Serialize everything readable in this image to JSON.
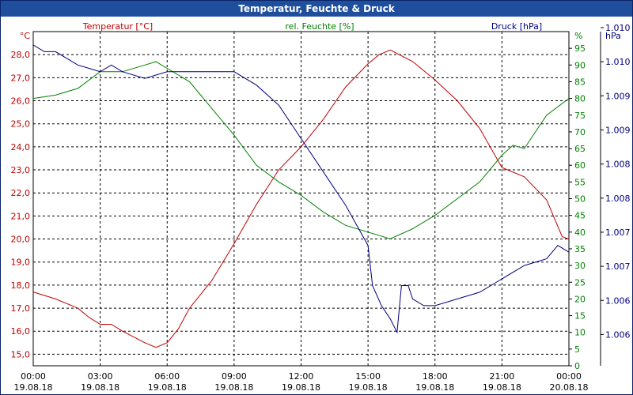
{
  "window": {
    "title": "Temperatur, Feuchte & Druck"
  },
  "chart_data": {
    "type": "line",
    "title": "Temperatur, Feuchte & Druck",
    "x_ticks": [
      {
        "time": "00:00",
        "date": "19.08.18"
      },
      {
        "time": "03:00",
        "date": "19.08.18"
      },
      {
        "time": "06:00",
        "date": "19.08.18"
      },
      {
        "time": "09:00",
        "date": "19.08.18"
      },
      {
        "time": "12:00",
        "date": "19.08.18"
      },
      {
        "time": "15:00",
        "date": "19.08.18"
      },
      {
        "time": "18:00",
        "date": "19.08.18"
      },
      {
        "time": "21:00",
        "date": "19.08.18"
      },
      {
        "time": "00:00",
        "date": "20.08.18"
      }
    ],
    "xlim_hours": [
      0,
      24
    ],
    "grid": true,
    "axes": {
      "temperature": {
        "label": "Temperatur [°C]",
        "unit": "°C",
        "color": "#c00000",
        "range": [
          14.5,
          29.0
        ],
        "ticks": [
          "15,0",
          "16,0",
          "17,0",
          "18,0",
          "19,0",
          "20,0",
          "21,0",
          "22,0",
          "23,0",
          "24,0",
          "25,0",
          "26,0",
          "27,0",
          "28,0"
        ]
      },
      "humidity": {
        "label": "rel. Feuchte [%]",
        "unit": "%",
        "color": "#008000",
        "range": [
          0,
          100
        ],
        "ticks": [
          "0",
          "5",
          "10",
          "15",
          "20",
          "25",
          "30",
          "35",
          "40",
          "45",
          "50",
          "55",
          "60",
          "65",
          "70",
          "75",
          "80",
          "85",
          "90",
          "95"
        ]
      },
      "pressure": {
        "label": "Druck [hPa]",
        "unit": "hPa",
        "color": "#000080",
        "range": [
          1005.4,
          1010.4
        ],
        "ticks": [
          "1.006",
          "1.006",
          "1.007",
          "1.007",
          "1.008",
          "1.008",
          "1.009",
          "1.009",
          "1.010",
          "1.010"
        ]
      }
    },
    "series": [
      {
        "name": "Temperatur [°C]",
        "axis": "temperature",
        "color": "#c00000",
        "x": [
          0,
          1,
          2,
          2.5,
          3,
          3.5,
          4,
          5,
          5.5,
          6,
          6.5,
          7,
          8,
          9,
          10,
          11,
          12,
          13,
          14,
          15,
          15.5,
          16,
          17,
          18,
          19,
          20,
          21,
          22,
          23,
          23.7,
          24
        ],
        "values": [
          17.7,
          17.4,
          17.0,
          16.6,
          16.3,
          16.3,
          16.0,
          15.5,
          15.3,
          15.5,
          16.1,
          17.0,
          18.2,
          19.8,
          21.5,
          23.0,
          24.0,
          25.2,
          26.6,
          27.6,
          28.0,
          28.2,
          27.7,
          26.9,
          26.0,
          24.8,
          23.1,
          22.7,
          21.7,
          20.1,
          20.0
        ]
      },
      {
        "name": "rel. Feuchte [%]",
        "axis": "humidity",
        "color": "#008000",
        "x": [
          0,
          1,
          2,
          3,
          4,
          5,
          5.5,
          6,
          7,
          8,
          9,
          10,
          11,
          12,
          13,
          14,
          15,
          16,
          17,
          18,
          19,
          20,
          21,
          21.5,
          22,
          23,
          24
        ],
        "values": [
          80,
          81,
          83,
          88,
          88,
          90,
          91,
          89,
          85,
          77,
          69,
          60,
          55,
          51,
          46,
          42,
          40,
          38,
          41,
          45,
          50,
          55,
          63,
          66,
          65,
          75,
          80
        ]
      },
      {
        "name": "Druck [hPa]",
        "axis": "pressure",
        "color": "#000080",
        "x": [
          0,
          0.5,
          1,
          1.5,
          2,
          2.5,
          3,
          3.5,
          4,
          5,
          6,
          7,
          8,
          9,
          10,
          11,
          12,
          13,
          14,
          15,
          15.2,
          15.6,
          16,
          16.3,
          16.5,
          16.8,
          17,
          17.5,
          18,
          19,
          20,
          21,
          22,
          23,
          23.5,
          24
        ],
        "values": [
          1010.2,
          1010.1,
          1010.1,
          1010.0,
          1009.9,
          1009.85,
          1009.8,
          1009.9,
          1009.8,
          1009.7,
          1009.8,
          1009.8,
          1009.8,
          1009.8,
          1009.6,
          1009.3,
          1008.8,
          1008.3,
          1007.8,
          1007.2,
          1006.6,
          1006.3,
          1006.1,
          1005.9,
          1006.6,
          1006.6,
          1006.4,
          1006.3,
          1006.3,
          1006.4,
          1006.5,
          1006.7,
          1006.9,
          1007.0,
          1007.2,
          1007.1
        ]
      }
    ]
  }
}
